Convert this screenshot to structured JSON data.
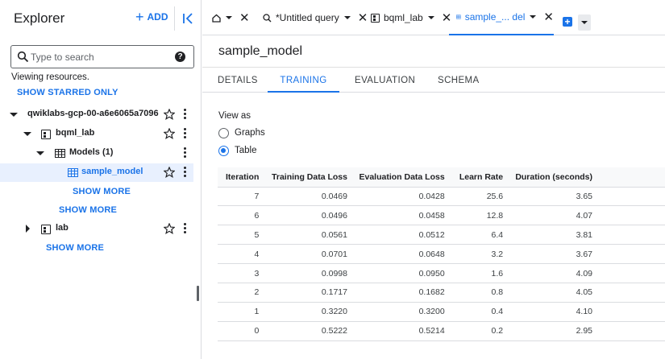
{
  "explorer": {
    "title": "Explorer",
    "add_label": "ADD",
    "search_placeholder": "Type to search",
    "viewing_text": "Viewing resources.",
    "show_starred_label": "SHOW STARRED ONLY",
    "tree": {
      "project": "qwiklabs-gcp-00-a6e6065a7096",
      "dataset": "bqml_lab",
      "models_folder": "Models (1)",
      "model": "sample_model",
      "show_more_models": "SHOW MORE",
      "show_more_datasets": "SHOW MORE",
      "dataset2": "lab",
      "show_more_projects": "SHOW MORE"
    }
  },
  "tabs": [
    {
      "label": "",
      "icon": "home-icon"
    },
    {
      "label": "*Untitled query",
      "icon": "query-icon"
    },
    {
      "label": "bqml_lab",
      "icon": "dataset-icon"
    },
    {
      "label": "sample_... del",
      "icon": "model-icon",
      "active": true
    }
  ],
  "main": {
    "title": "sample_model",
    "subtabs": [
      "DETAILS",
      "TRAINING",
      "EVALUATION",
      "SCHEMA"
    ],
    "active_subtab": "TRAINING",
    "view_as_label": "View as",
    "view_options": [
      "Graphs",
      "Table"
    ],
    "selected_view": "Table",
    "table": {
      "headers": [
        "Iteration",
        "Training Data Loss",
        "Evaluation Data Loss",
        "Learn Rate",
        "Duration (seconds)"
      ],
      "rows": [
        [
          "7",
          "0.0469",
          "0.0428",
          "25.6",
          "3.65"
        ],
        [
          "6",
          "0.0496",
          "0.0458",
          "12.8",
          "4.07"
        ],
        [
          "5",
          "0.0561",
          "0.0512",
          "6.4",
          "3.81"
        ],
        [
          "4",
          "0.0701",
          "0.0648",
          "3.2",
          "3.67"
        ],
        [
          "3",
          "0.0998",
          "0.0950",
          "1.6",
          "4.09"
        ],
        [
          "2",
          "0.1717",
          "0.1682",
          "0.8",
          "4.05"
        ],
        [
          "1",
          "0.3220",
          "0.3200",
          "0.4",
          "4.10"
        ],
        [
          "0",
          "0.5222",
          "0.5214",
          "0.2",
          "2.95"
        ]
      ]
    }
  },
  "colors": {
    "accent": "#1a73e8",
    "border": "#dadce0",
    "selected_bg": "#e8f0fe"
  }
}
